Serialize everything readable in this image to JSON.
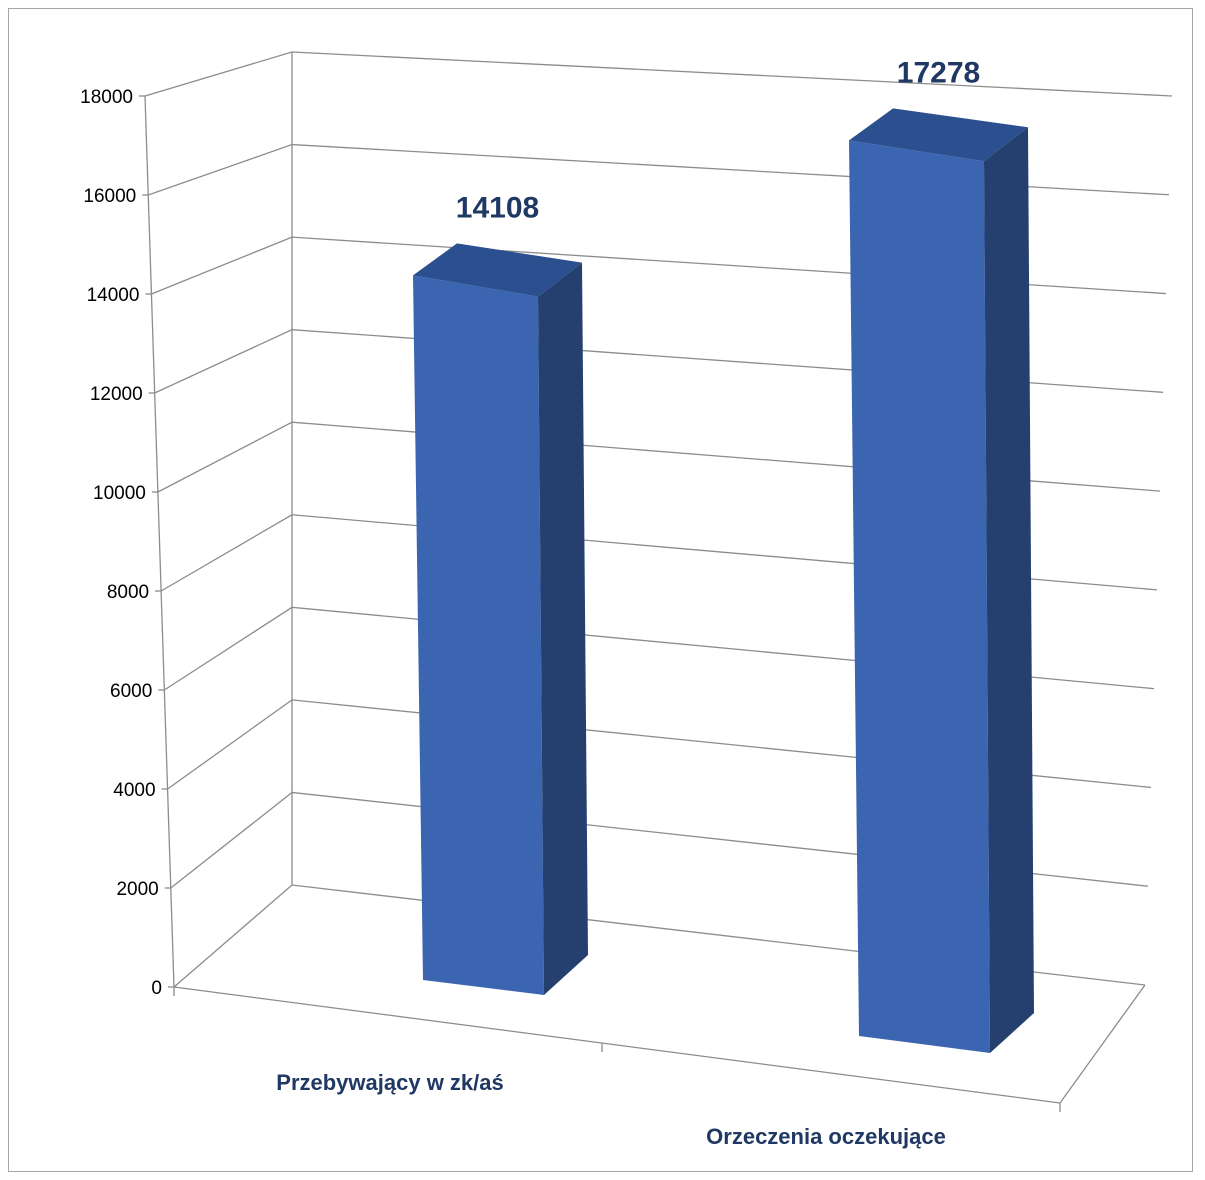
{
  "chart_data": {
    "type": "bar",
    "style": "3d-column",
    "categories": [
      "Przebywający w zk/aś",
      "Orzeczenia oczekujące"
    ],
    "values": [
      14108,
      17278
    ],
    "data_labels": [
      "14108",
      "17278"
    ],
    "y_ticks": [
      "0",
      "2000",
      "4000",
      "6000",
      "8000",
      "10000",
      "12000",
      "14000",
      "16000",
      "18000"
    ],
    "ylim": [
      0,
      18000
    ],
    "grid": true,
    "legend": "none",
    "colors": {
      "bar_front": "#3b65b0",
      "bar_top": "#2b4f8f",
      "bar_side": "#25406f",
      "label": "#1f3864",
      "grid": "#8c8c8c"
    }
  }
}
